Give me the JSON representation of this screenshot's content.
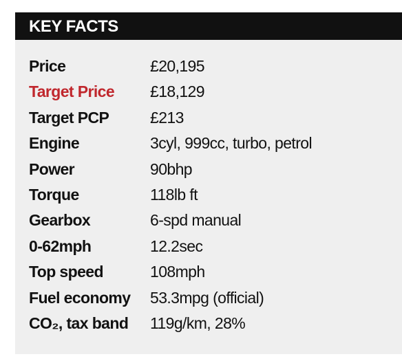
{
  "header": {
    "title": "KEY FACTS"
  },
  "table": {
    "rows": [
      [
        "Price",
        "£20,195"
      ],
      [
        "Target Price",
        "£18,129"
      ],
      [
        "Target PCP",
        "£213"
      ],
      [
        "Engine",
        "3cyl, 999cc, turbo, petrol"
      ],
      [
        "Power",
        "90bhp"
      ],
      [
        "Torque",
        "118lb ft"
      ],
      [
        "Gearbox",
        "6-spd manual"
      ],
      [
        "0-62mph",
        "12.2sec"
      ],
      [
        "Top speed",
        "108mph"
      ],
      [
        "Fuel economy",
        "53.3mpg (official)"
      ],
      [
        "CO₂, tax band",
        "119g/km, 28%"
      ]
    ]
  }
}
